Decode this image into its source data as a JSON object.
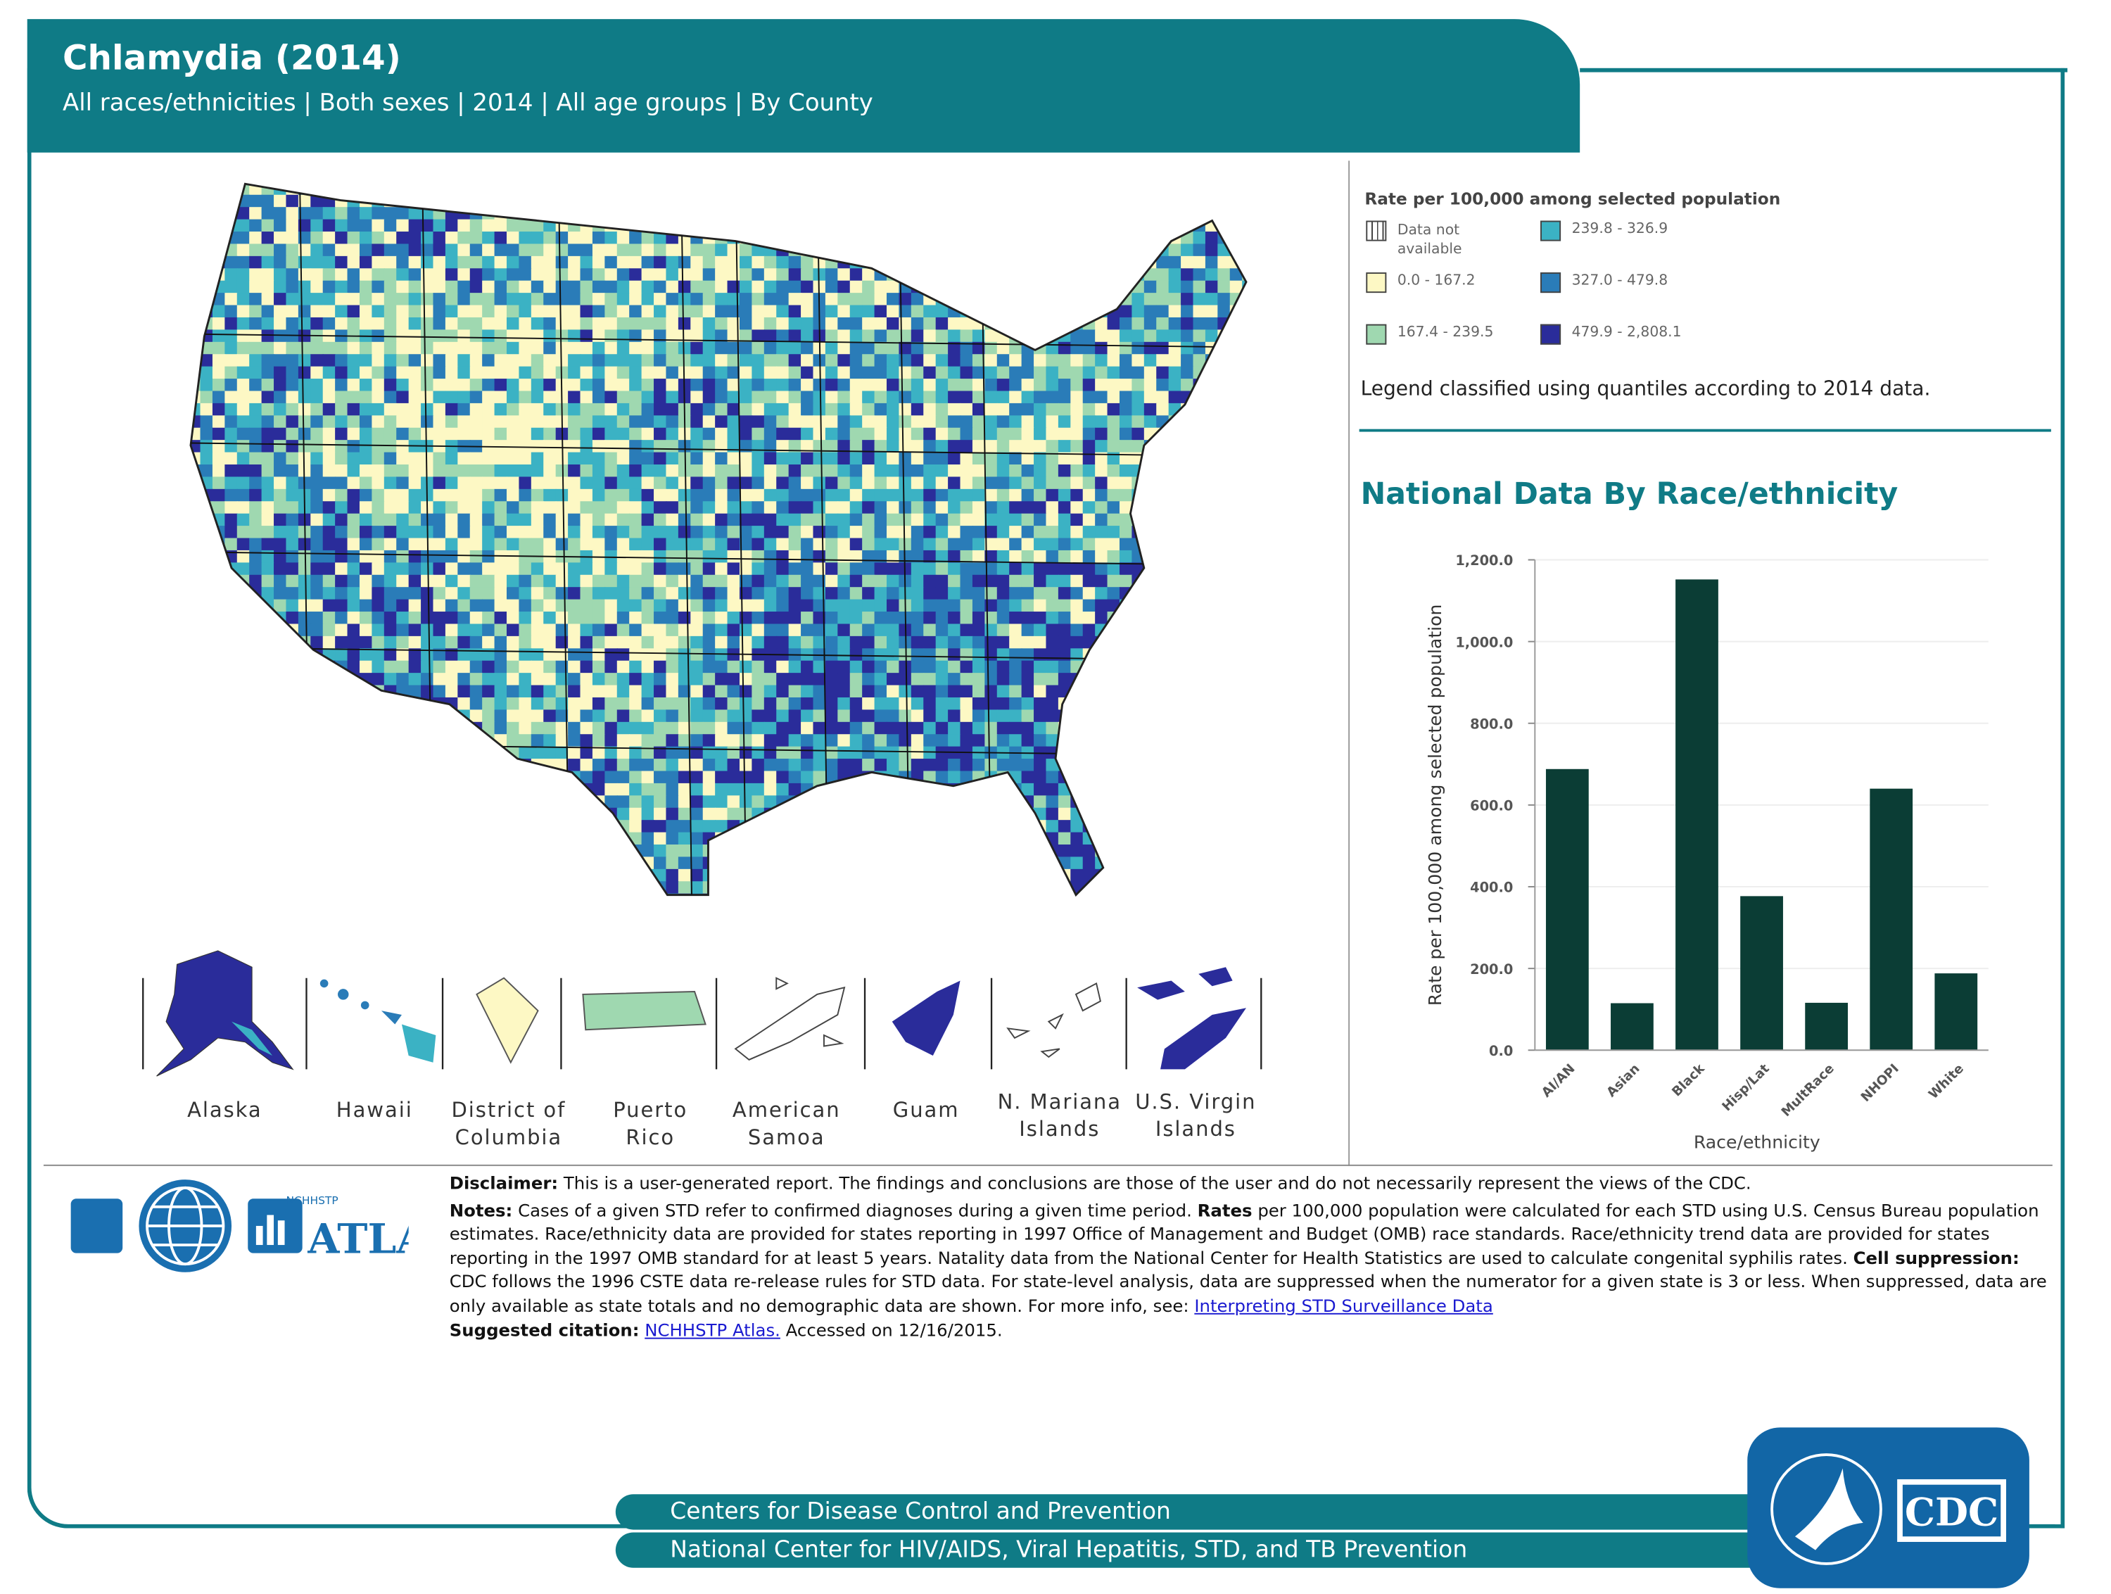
{
  "header": {
    "title": "Chlamydia (2014)",
    "subtitle": "All races/ethnicities | Both sexes | 2014 | All age groups | By County"
  },
  "legend": {
    "title": "Rate per 100,000 among selected population",
    "items": [
      {
        "label": "Data not available",
        "color": "pattern-hatched"
      },
      {
        "label": "0.0 - 167.2",
        "color": "#fdf8c4"
      },
      {
        "label": "167.4 - 239.5",
        "color": "#9fd8b0"
      },
      {
        "label": "239.8 - 326.9",
        "color": "#3bb2c4"
      },
      {
        "label": "327.0 - 479.8",
        "color": "#2a7cb8"
      },
      {
        "label": "479.9 - 2,808.1",
        "color": "#2a2c9a"
      }
    ],
    "note": "Legend classified using quantiles according to 2014 data."
  },
  "territories": [
    {
      "label": "Alaska"
    },
    {
      "label": "Hawaii"
    },
    {
      "label": "District of Columbia"
    },
    {
      "label": "Puerto Rico"
    },
    {
      "label": "American Samoa"
    },
    {
      "label": "Guam"
    },
    {
      "label": "N. Mariana Islands"
    },
    {
      "label": "U.S. Virgin Islands"
    }
  ],
  "national": {
    "title": "National Data By Race/ethnicity"
  },
  "chart_data": {
    "type": "bar",
    "categories": [
      "AI/AN",
      "Asian",
      "Black",
      "Hisp/Lat",
      "MultRace",
      "NHOPI",
      "White"
    ],
    "values": [
      688,
      115,
      1152,
      377,
      116,
      640,
      188
    ],
    "xlabel": "Race/ethnicity",
    "ylabel": "Rate per 100,000 among selected population",
    "ylim": [
      0,
      1200
    ],
    "yticks": [
      "0.0",
      "200.0",
      "400.0",
      "600.0",
      "800.0",
      "1,000.0",
      "1,200.0"
    ],
    "grid": true,
    "bar_color": "#0b3d35"
  },
  "notes": {
    "disclaimer_label": "Disclaimer:",
    "disclaimer": " This is a user-generated report. The findings and conclusions are those of the user and do not necessarily represent the views of the CDC.",
    "notes_label": "Notes:",
    "notes_1": " Cases of a given STD refer to confirmed diagnoses during a given time period. ",
    "rates_label": "Rates",
    "notes_2": " per 100,000 population were calculated for each STD using U.S. Census Bureau population estimates. Race/ethnicity data are provided for states reporting in 1997 Office of Management and Budget (OMB) race standards. Race/ethnicity trend data are provided for states reporting in the 1997 OMB standard for at least 5 years. Natality data from the National Center for Health Statistics are used to calculate congenital syphilis rates. ",
    "suppression_label": "Cell suppression:",
    "notes_3": " CDC follows the 1996 CSTE data re-release rules for STD data. For state-level analysis, data are suppressed when the numerator for a given state is 3 or less. When suppressed, data are only available as state totals and no demographic data are shown. For more info, see: ",
    "link_interpreting": "Interpreting STD Surveillance Data",
    "citation_label": "Suggested citation:",
    "link_atlas": "NCHHSTP Atlas.",
    "citation_tail": " Accessed on 12/16/2015."
  },
  "logo": {
    "small": "NCHHSTP",
    "name": "ATLAS"
  },
  "footer": {
    "line1": "Centers for Disease Control and Prevention",
    "line2": "National Center for HIV/AIDS, Viral Hepatitis, STD, and TB Prevention",
    "cdc": "CDC"
  }
}
